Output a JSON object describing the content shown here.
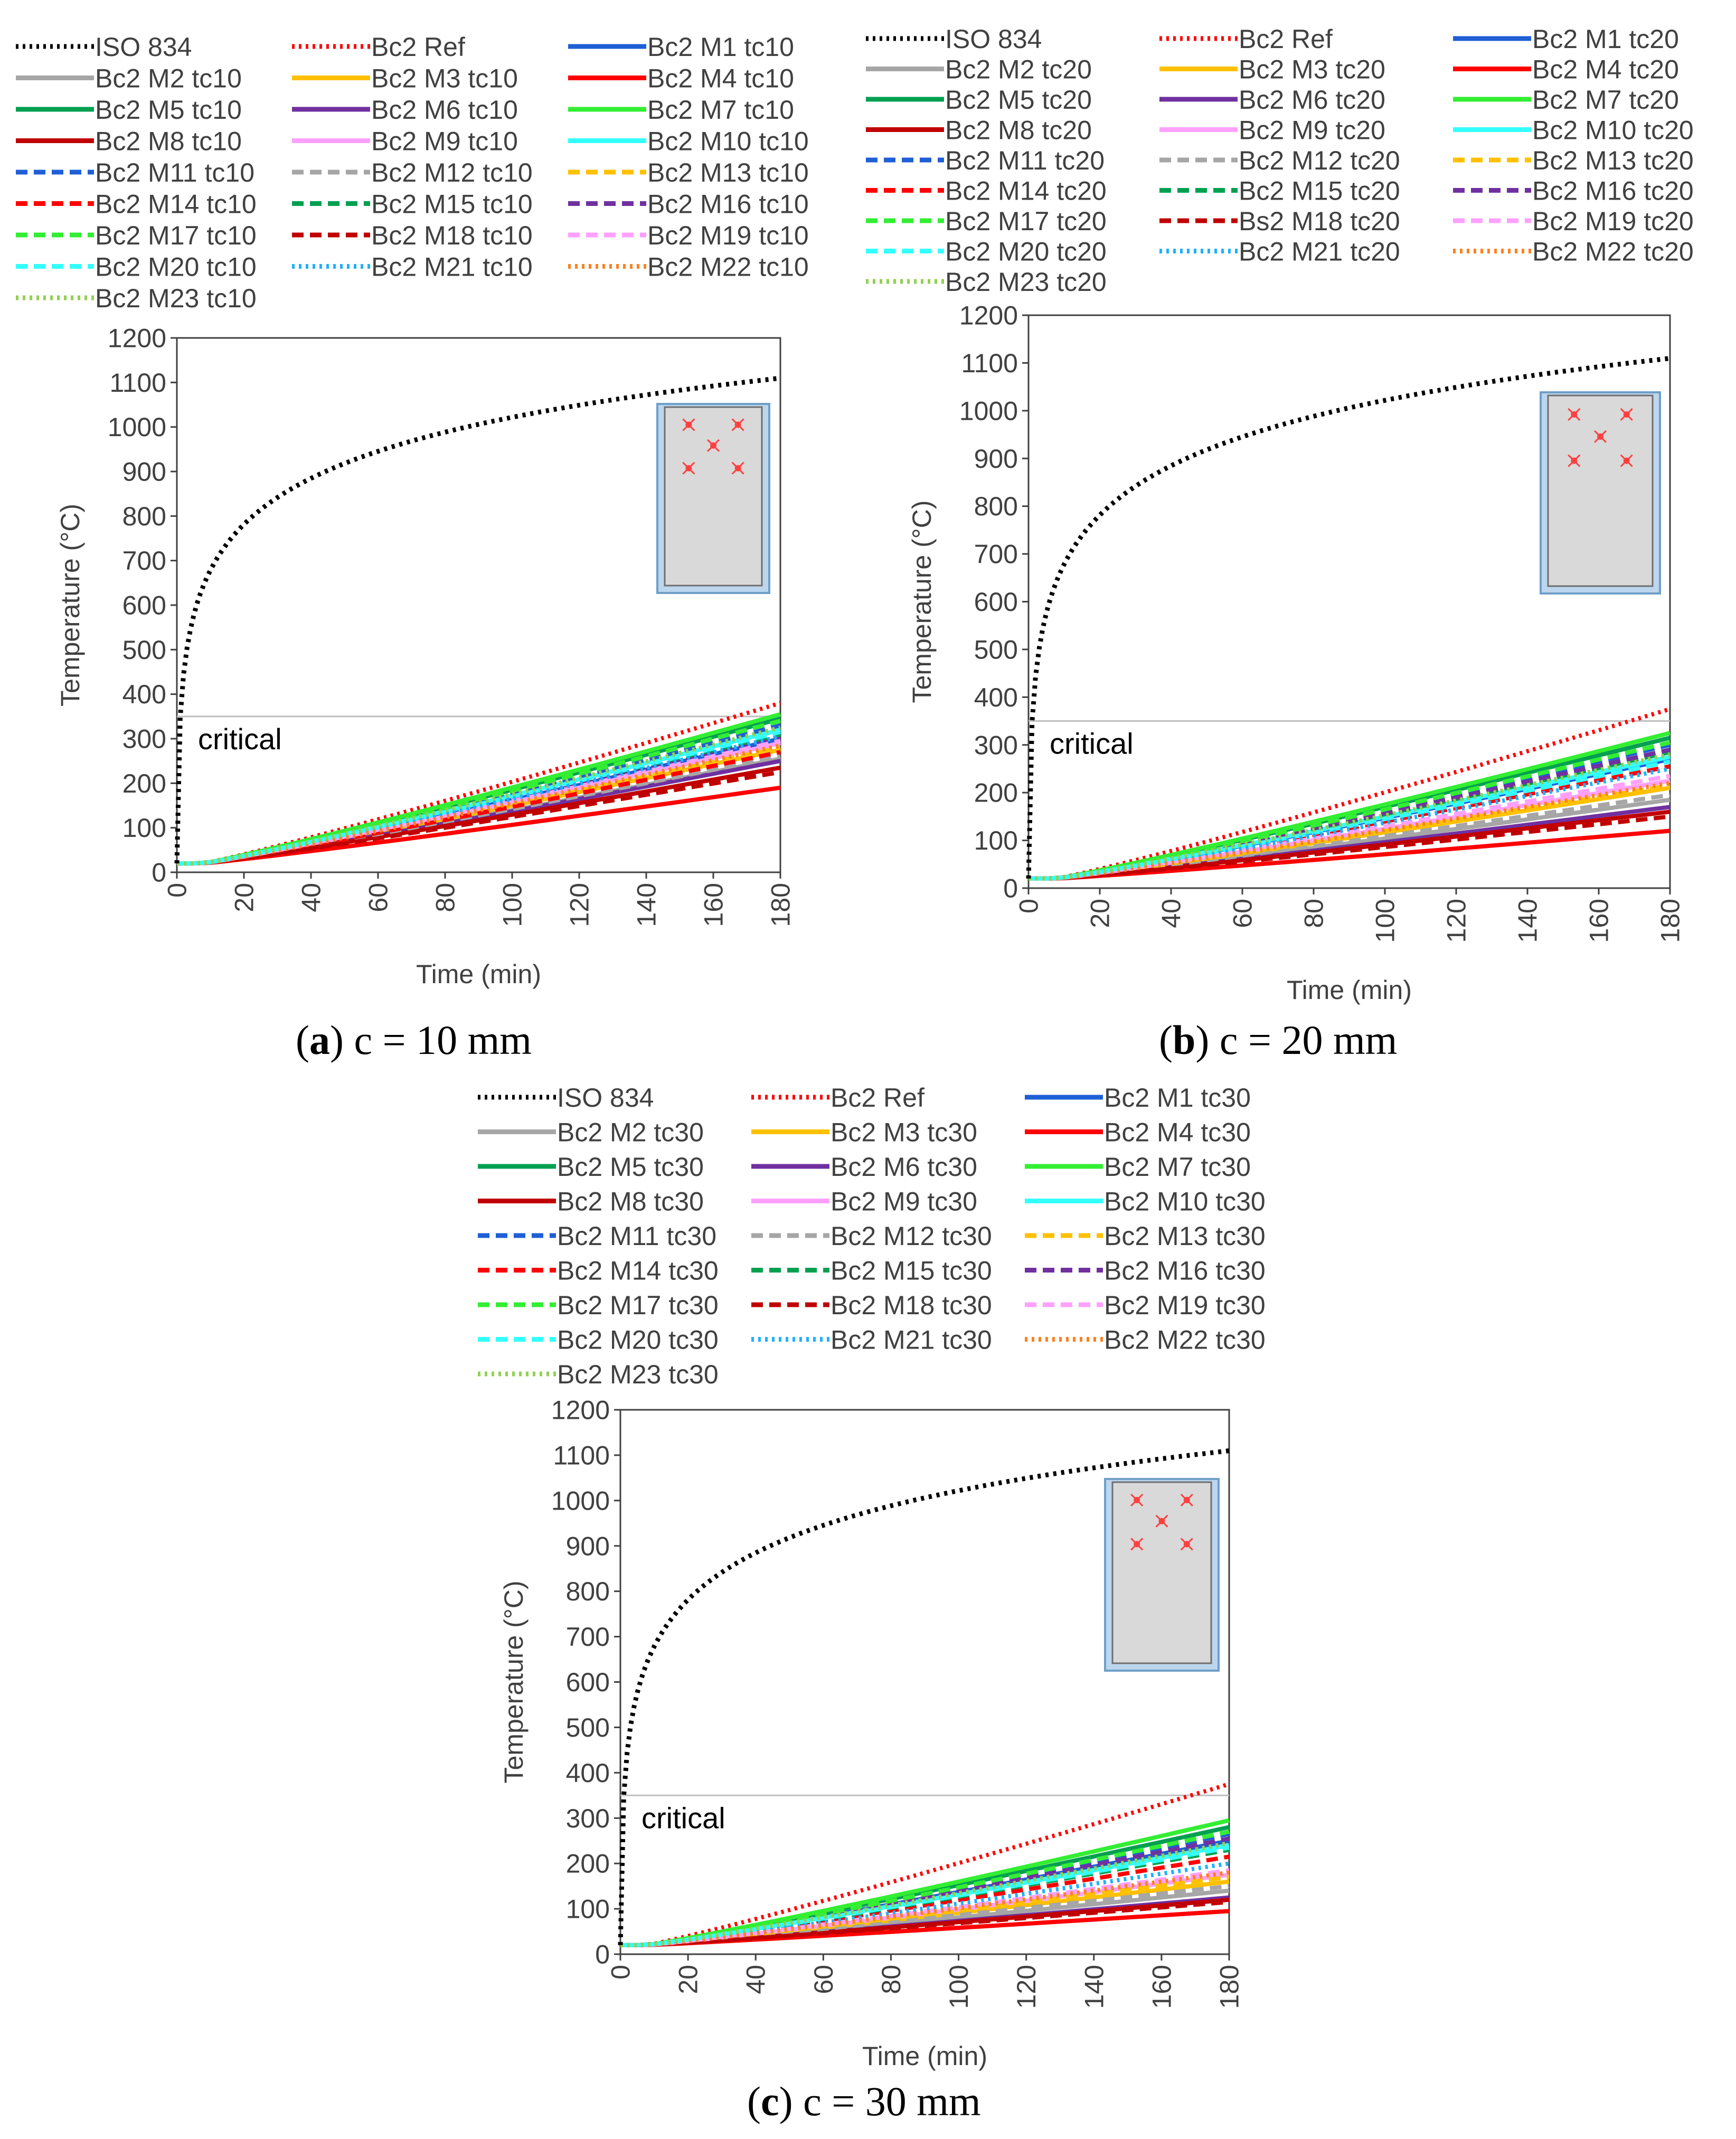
{
  "figure": {
    "captions": [
      {
        "letter": "a",
        "open": "(",
        "close": ")",
        "text": " c = 10 mm"
      },
      {
        "letter": "b",
        "open": "(",
        "close": ")",
        "text": " c = 20 mm"
      },
      {
        "letter": "c",
        "open": "(",
        "close": ")",
        "text": " c = 30 mm"
      }
    ]
  },
  "style": {
    "colors": {
      "ISO": "#000000",
      "Ref": "#ff0000",
      "M1": "#1f5fd6",
      "M2": "#a6a6a6",
      "M3": "#ffc000",
      "M4": "#ff0000",
      "M5": "#00a050",
      "M6": "#7030a0",
      "M7": "#33ee33",
      "M8": "#c00000",
      "M9": "#ffa0ff",
      "M10": "#33ffff",
      "M11": "#1f5fd6",
      "M12": "#a6a6a6",
      "M13": "#ffc000",
      "M14": "#ff0000",
      "M15": "#00a050",
      "M16": "#7030a0",
      "M17": "#33ee33",
      "M18": "#c00000",
      "M19": "#ffa0ff",
      "M20": "#33ffff",
      "M21": "#1fb0ff",
      "M22": "#ff8020",
      "M23": "#92d050",
      "critical_line": "#bfbfbf",
      "section_fill": "#d9d9d9",
      "section_border": "#6f9fc8",
      "section_inner": "#ffffff",
      "rebar": "#ff4040"
    }
  },
  "chart_data": [
    {
      "type": "line",
      "panel": "a",
      "xlabel": "Time (min)",
      "ylabel": "Temperature (°C)",
      "xlim": [
        0,
        180
      ],
      "ylim": [
        0,
        1200
      ],
      "xticks": [
        0,
        20,
        40,
        60,
        80,
        100,
        120,
        140,
        160,
        180
      ],
      "yticks": [
        0,
        100,
        200,
        300,
        400,
        500,
        600,
        700,
        800,
        900,
        1000,
        1100,
        1200
      ],
      "critical": {
        "label": "critical",
        "value": 350
      },
      "iso": {
        "name": "ISO 834",
        "x": [
          0,
          2,
          5,
          10,
          15,
          20,
          30,
          45,
          60,
          90,
          120,
          150,
          180
        ],
        "y": [
          20,
          445,
          576,
          678,
          739,
          781,
          842,
          902,
          945,
          1006,
          1049,
          1082,
          1110
        ]
      },
      "series": [
        {
          "name": "Bc2 Ref",
          "key": "Ref",
          "style": "dot",
          "end": 380
        },
        {
          "name": "Bc2 M1 tc10",
          "key": "M1",
          "style": "solid",
          "end": 300
        },
        {
          "name": "Bc2 M2 tc10",
          "key": "M2",
          "style": "solid",
          "end": 255
        },
        {
          "name": "Bc2 M3 tc10",
          "key": "M3",
          "style": "solid",
          "end": 275
        },
        {
          "name": "Bc2 M4 tc10",
          "key": "M4",
          "style": "solid",
          "end": 190
        },
        {
          "name": "Bc2 M5 tc10",
          "key": "M5",
          "style": "solid",
          "end": 345
        },
        {
          "name": "Bc2 M6 tc10",
          "key": "M6",
          "style": "solid",
          "end": 250
        },
        {
          "name": "Bc2 M7 tc10",
          "key": "M7",
          "style": "solid",
          "end": 355
        },
        {
          "name": "Bc2 M8 tc10",
          "key": "M8",
          "style": "solid",
          "end": 235
        },
        {
          "name": "Bc2 M9 tc10",
          "key": "M9",
          "style": "solid",
          "end": 290
        },
        {
          "name": "Bc2 M10 tc10",
          "key": "M10",
          "style": "solid",
          "end": 320
        },
        {
          "name": "Bc2 M11 tc10",
          "key": "M11",
          "style": "dash",
          "end": 330
        },
        {
          "name": "Bc2 M12 tc10",
          "key": "M12",
          "style": "dash",
          "end": 260
        },
        {
          "name": "Bc2 M13 tc10",
          "key": "M13",
          "style": "dash",
          "end": 280
        },
        {
          "name": "Bc2 M14 tc10",
          "key": "M14",
          "style": "dash",
          "end": 270
        },
        {
          "name": "Bc2 M15 tc10",
          "key": "M15",
          "style": "dash",
          "end": 310
        },
        {
          "name": "Bc2 M16 tc10",
          "key": "M16",
          "style": "dash",
          "end": 300
        },
        {
          "name": "Bc2 M17 tc10",
          "key": "M17",
          "style": "dash",
          "end": 340
        },
        {
          "name": "Bc2 M18 tc10",
          "key": "M18",
          "style": "dash",
          "end": 225
        },
        {
          "name": "Bc2 M19 tc10",
          "key": "M19",
          "style": "dash",
          "end": 295
        },
        {
          "name": "Bc2 M20 tc10",
          "key": "M20",
          "style": "dash",
          "end": 315
        },
        {
          "name": "Bc2 M21 tc10",
          "key": "M21",
          "style": "dot",
          "end": 305
        },
        {
          "name": "Bc2 M22 tc10",
          "key": "M22",
          "style": "dot",
          "end": 285
        },
        {
          "name": "Bc2 M23 tc10",
          "key": "M23",
          "style": "dot",
          "end": 325
        }
      ]
    },
    {
      "type": "line",
      "panel": "b",
      "xlabel": "Time (min)",
      "ylabel": "Temperature (°C)",
      "xlim": [
        0,
        180
      ],
      "ylim": [
        0,
        1200
      ],
      "xticks": [
        0,
        20,
        40,
        60,
        80,
        100,
        120,
        140,
        160,
        180
      ],
      "yticks": [
        0,
        100,
        200,
        300,
        400,
        500,
        600,
        700,
        800,
        900,
        1000,
        1100,
        1200
      ],
      "critical": {
        "label": "critical",
        "value": 350
      },
      "iso": {
        "name": "ISO 834",
        "x": [
          0,
          2,
          5,
          10,
          15,
          20,
          30,
          45,
          60,
          90,
          120,
          150,
          180
        ],
        "y": [
          20,
          445,
          576,
          678,
          739,
          781,
          842,
          902,
          945,
          1006,
          1049,
          1082,
          1110
        ]
      },
      "series": [
        {
          "name": "Bc2 Ref",
          "key": "Ref",
          "style": "dot",
          "end": 375
        },
        {
          "name": "Bc2 M1 tc20",
          "key": "M1",
          "style": "solid",
          "end": 270
        },
        {
          "name": "Bc2 M2 tc20",
          "key": "M2",
          "style": "solid",
          "end": 185
        },
        {
          "name": "Bc2 M3 tc20",
          "key": "M3",
          "style": "solid",
          "end": 210
        },
        {
          "name": "Bc2 M4 tc20",
          "key": "M4",
          "style": "solid",
          "end": 120
        },
        {
          "name": "Bc2 M5 tc20",
          "key": "M5",
          "style": "solid",
          "end": 315
        },
        {
          "name": "Bc2 M6 tc20",
          "key": "M6",
          "style": "solid",
          "end": 170
        },
        {
          "name": "Bc2 M7 tc20",
          "key": "M7",
          "style": "solid",
          "end": 325
        },
        {
          "name": "Bc2 M8 tc20",
          "key": "M8",
          "style": "solid",
          "end": 160
        },
        {
          "name": "Bc2 M9 tc20",
          "key": "M9",
          "style": "solid",
          "end": 225
        },
        {
          "name": "Bc2 M10 tc20",
          "key": "M10",
          "style": "solid",
          "end": 275
        },
        {
          "name": "Bc2 M11 tc20",
          "key": "M11",
          "style": "dash",
          "end": 300
        },
        {
          "name": "Bc2 M12 tc20",
          "key": "M12",
          "style": "dash",
          "end": 195
        },
        {
          "name": "Bc2 M13 tc20",
          "key": "M13",
          "style": "dash",
          "end": 215
        },
        {
          "name": "Bc2 M14 tc20",
          "key": "M14",
          "style": "dash",
          "end": 255
        },
        {
          "name": "Bc2 M15 tc20",
          "key": "M15",
          "style": "dash",
          "end": 285
        },
        {
          "name": "Bc2 M16 tc20",
          "key": "M16",
          "style": "dash",
          "end": 290
        },
        {
          "name": "Bc2 M17 tc20",
          "key": "M17",
          "style": "dash",
          "end": 305
        },
        {
          "name": "Bs2 M18 tc20",
          "key": "M18",
          "style": "dash",
          "end": 150
        },
        {
          "name": "Bc2 M19 tc20",
          "key": "M19",
          "style": "dash",
          "end": 235
        },
        {
          "name": "Bc2 M20 tc20",
          "key": "M20",
          "style": "dash",
          "end": 265
        },
        {
          "name": "Bc2 M21 tc20",
          "key": "M21",
          "style": "dot",
          "end": 250
        },
        {
          "name": "Bc2 M22 tc20",
          "key": "M22",
          "style": "dot",
          "end": 220
        },
        {
          "name": "Bc2 M23 tc20",
          "key": "M23",
          "style": "dot",
          "end": 280
        }
      ]
    },
    {
      "type": "line",
      "panel": "c",
      "xlabel": "Time (min)",
      "ylabel": "Temperature (°C)",
      "xlim": [
        0,
        180
      ],
      "ylim": [
        0,
        1200
      ],
      "xticks": [
        0,
        20,
        40,
        60,
        80,
        100,
        120,
        140,
        160,
        180
      ],
      "yticks": [
        0,
        100,
        200,
        300,
        400,
        500,
        600,
        700,
        800,
        900,
        1000,
        1100,
        1200
      ],
      "critical": {
        "label": "critical",
        "value": 350
      },
      "iso": {
        "name": "ISO 834",
        "x": [
          0,
          2,
          5,
          10,
          15,
          20,
          30,
          45,
          60,
          90,
          120,
          150,
          180
        ],
        "y": [
          20,
          445,
          576,
          678,
          739,
          781,
          842,
          902,
          945,
          1006,
          1049,
          1082,
          1110
        ]
      },
      "series": [
        {
          "name": "Bc2 Ref",
          "key": "Ref",
          "style": "dot",
          "end": 375
        },
        {
          "name": "Bc2 M1 tc30",
          "key": "M1",
          "style": "solid",
          "end": 250
        },
        {
          "name": "Bc2 M2 tc30",
          "key": "M2",
          "style": "solid",
          "end": 140
        },
        {
          "name": "Bc2 M3 tc30",
          "key": "M3",
          "style": "solid",
          "end": 160
        },
        {
          "name": "Bc2 M4 tc30",
          "key": "M4",
          "style": "solid",
          "end": 95
        },
        {
          "name": "Bc2 M5 tc30",
          "key": "M5",
          "style": "solid",
          "end": 280
        },
        {
          "name": "Bc2 M6 tc30",
          "key": "M6",
          "style": "solid",
          "end": 125
        },
        {
          "name": "Bc2 M7 tc30",
          "key": "M7",
          "style": "solid",
          "end": 295
        },
        {
          "name": "Bc2 M8 tc30",
          "key": "M8",
          "style": "solid",
          "end": 120
        },
        {
          "name": "Bc2 M9 tc30",
          "key": "M9",
          "style": "solid",
          "end": 175
        },
        {
          "name": "Bc2 M10 tc30",
          "key": "M10",
          "style": "solid",
          "end": 240
        },
        {
          "name": "Bc2 M11 tc30",
          "key": "M11",
          "style": "dash",
          "end": 265
        },
        {
          "name": "Bc2 M12 tc30",
          "key": "M12",
          "style": "dash",
          "end": 150
        },
        {
          "name": "Bc2 M13 tc30",
          "key": "M13",
          "style": "dash",
          "end": 170
        },
        {
          "name": "Bc2 M14 tc30",
          "key": "M14",
          "style": "dash",
          "end": 215
        },
        {
          "name": "Bc2 M15 tc30",
          "key": "M15",
          "style": "dash",
          "end": 230
        },
        {
          "name": "Bc2 M16 tc30",
          "key": "M16",
          "style": "dash",
          "end": 255
        },
        {
          "name": "Bc2 M17 tc30",
          "key": "M17",
          "style": "dash",
          "end": 270
        },
        {
          "name": "Bc2 M18 tc30",
          "key": "M18",
          "style": "dash",
          "end": 115
        },
        {
          "name": "Bc2 M19 tc30",
          "key": "M19",
          "style": "dash",
          "end": 185
        },
        {
          "name": "Bc2 M20 tc30",
          "key": "M20",
          "style": "dash",
          "end": 235
        },
        {
          "name": "Bc2 M21 tc30",
          "key": "M21",
          "style": "dot",
          "end": 200
        },
        {
          "name": "Bc2 M22 tc30",
          "key": "M22",
          "style": "dot",
          "end": 180
        },
        {
          "name": "Bc2 M23 tc30",
          "key": "M23",
          "style": "dot",
          "end": 245
        }
      ]
    }
  ]
}
